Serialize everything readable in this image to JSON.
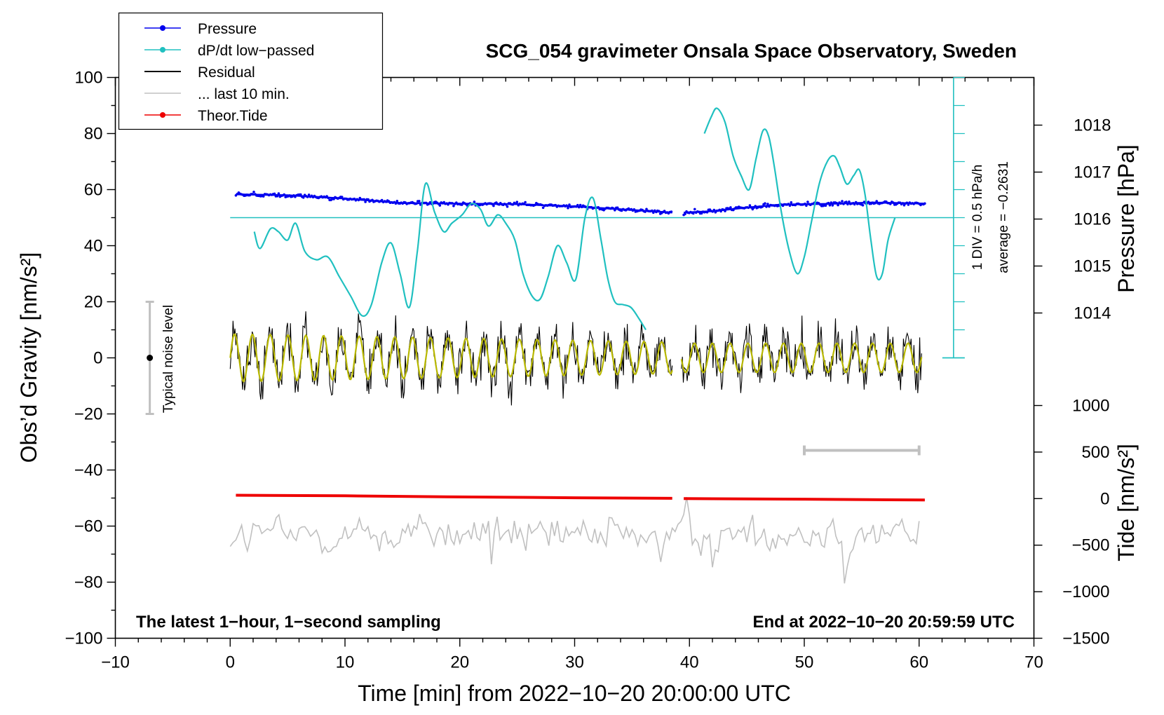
{
  "chart_data": {
    "type": "line",
    "title": "SCG_054 gravimeter Onsala Space Observatory, Sweden",
    "xlabel": "Time [min] from 2022−10−20 20:00:00 UTC",
    "ylabel_left": "Obs’d Gravity [nm/s²]",
    "ylabel_right_top": "Pressure [hPa]",
    "ylabel_right_bottom": "Tide [nm/s²]",
    "xlim": [
      -10,
      70
    ],
    "ylim": [
      -100,
      100
    ],
    "x_ticks": [
      -10,
      0,
      10,
      20,
      30,
      40,
      50,
      60,
      70
    ],
    "x_tick_labels": [
      "−10",
      "0",
      "10",
      "20",
      "30",
      "40",
      "50",
      "60",
      "70"
    ],
    "y_ticks": [
      100,
      80,
      60,
      40,
      20,
      0,
      -20,
      -40,
      -60,
      -80,
      -100
    ],
    "y_tick_labels": [
      "100",
      "80",
      "60",
      "40",
      "20",
      "0",
      "−20",
      "−40",
      "−60",
      "−80",
      "−100"
    ],
    "pressure_axis": {
      "ticks": [
        1018,
        1017,
        1016,
        1015,
        1014
      ],
      "tick_labels": [
        "1018",
        "1017",
        "1016",
        "1015",
        "1014"
      ],
      "gravity_equiv": [
        83,
        66.25,
        49.5,
        32.75,
        16
      ]
    },
    "tide_axis": {
      "ticks": [
        1000,
        500,
        0,
        -500,
        -1000,
        -1500
      ],
      "tick_labels": [
        "1000",
        "500",
        "0",
        "−500",
        "−1000",
        "−1500"
      ],
      "gravity_equiv": [
        -17,
        -33.6,
        -50.2,
        -66.8,
        -83.4,
        -100
      ]
    },
    "dpdt_scale": {
      "label": "1 DIV = 0.5 hPa/h",
      "average_label": "average = −0.2631",
      "zero_gravity": 50,
      "x": 63,
      "bottom": 0,
      "top": 100
    },
    "noise_bar": {
      "label": "Typical noise level",
      "x": -7,
      "center": 0,
      "half_range": 20
    },
    "ten_min_bar": {
      "x_start": 50,
      "x_end": 60,
      "y": -33
    },
    "note_left": "The latest 1−hour, 1−second sampling",
    "note_right": "End at 2022−10−20 20:59:59 UTC",
    "legend": [
      {
        "label": "Pressure",
        "color": "#0000ee",
        "marker": true
      },
      {
        "label": "dP/dt low−passed",
        "color": "#20c0c0",
        "marker": true
      },
      {
        "label": "Residual",
        "color": "#000000",
        "marker": false
      },
      {
        "label": "... last 10 min.",
        "color": "#c0c0c0",
        "marker": false
      },
      {
        "label": "Theor.Tide",
        "color": "#ee0000",
        "marker": true
      }
    ],
    "series": [
      {
        "name": "Pressure",
        "color": "#0000ee",
        "segments": [
          {
            "x": [
              0.5,
              5,
              10,
              15,
              20,
              25,
              30,
              34,
              38.5
            ],
            "y": [
              58.3,
              58.0,
              56.8,
              55.2,
              55.0,
              54.8,
              54.0,
              53.0,
              51.8
            ]
          },
          {
            "x": [
              39.5,
              42,
              45,
              48,
              52,
              56,
              60.5
            ],
            "y": [
              51.8,
              52.3,
              53.6,
              54.7,
              54.9,
              55.4,
              55.0
            ]
          }
        ]
      },
      {
        "name": "dP/dt low-passed",
        "color": "#20c0c0",
        "segments": [
          {
            "x": [
              2.1,
              2.6,
              3.5,
              4.2,
              5.0,
              5.7,
              6.5,
              7.5,
              8.5,
              9.5,
              10.5,
              11.5,
              12.3,
              13.2,
              14.0,
              14.8,
              15.6,
              16.3,
              17.0,
              17.8,
              18.6,
              19.3,
              20.2,
              21.0,
              21.8,
              22.5,
              23.3,
              24.0,
              24.8,
              25.5,
              26.3,
              27.0,
              27.7,
              28.5,
              29.3,
              30.1,
              30.9,
              31.6,
              32.3,
              32.9,
              33.5,
              34.2,
              34.9,
              35.6,
              36.2
            ],
            "y": [
              45,
              39,
              46,
              45,
              42,
              48,
              38,
              35,
              36,
              29,
              22,
              15,
              19,
              34,
              41,
              30,
              18,
              38,
              62,
              52,
              45,
              48,
              51,
              55,
              53,
              47,
              51,
              48,
              42,
              30,
              22,
              21,
              29,
              40,
              34,
              28,
              50,
              57,
              42,
              28,
              20,
              19,
              18,
              14,
              10
            ]
          },
          {
            "x": [
              41.3,
              41.9,
              42.4,
              43.1,
              43.8,
              44.5,
              45.2,
              45.8,
              46.4,
              46.9,
              47.4,
              48.0,
              48.7,
              49.4,
              50.0,
              50.6,
              51.3,
              52.0,
              52.6,
              53.1,
              53.7,
              54.3,
              54.8,
              55.3,
              55.8,
              56.3,
              56.8,
              57.3,
              57.9
            ],
            "y": [
              80,
              86,
              89,
              84,
              72,
              65,
              60,
              71,
              81,
              79,
              68,
              52,
              38,
              30,
              36,
              48,
              62,
              70,
              72,
              68,
              62,
              65,
              67,
              58,
              42,
              29,
              30,
              42,
              50
            ]
          }
        ]
      },
      {
        "name": "Residual",
        "color": "#000000",
        "segments": [
          {
            "x": [
              0,
              38.5
            ]
          },
          {
            "x": [
              39.3,
              60.3
            ]
          }
        ]
      },
      {
        "name": "Theor.Tide",
        "color": "#ee0000",
        "segments": [
          {
            "x": [
              0.5,
              10,
              20,
              30,
              38.5
            ],
            "y": [
              -49.0,
              -49.2,
              -49.6,
              -49.9,
              -50.1
            ]
          },
          {
            "x": [
              39.5,
              50,
              60.5
            ],
            "y": [
              -50.2,
              -50.4,
              -50.7
            ]
          }
        ]
      },
      {
        "name": "... last 10 min.",
        "color": "#c0c0c0",
        "segments": [
          {
            "x": [
              0,
              60
            ]
          }
        ]
      }
    ]
  }
}
